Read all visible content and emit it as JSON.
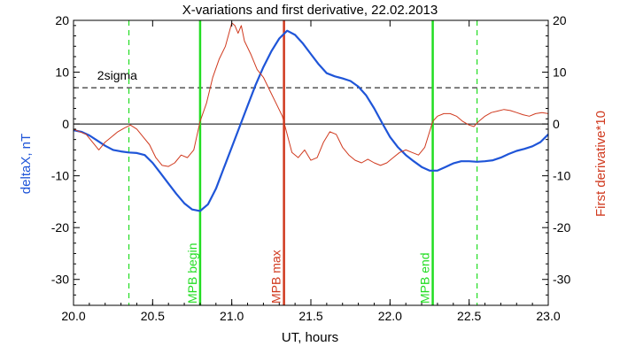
{
  "chart_data": {
    "type": "line",
    "title": "X-variations and first derivative, 22.02.2013",
    "xlabel": "UT, hours",
    "ylabel_left": "deltaX, nT",
    "ylabel_right": "First derivative*10",
    "xlim": [
      20.0,
      23.0
    ],
    "ylim": [
      -35,
      20
    ],
    "x_ticks": [
      "20.0",
      "20.5",
      "21.0",
      "21.5",
      "22.0",
      "22.5",
      "23.0"
    ],
    "y_ticks_left": [
      "20",
      "10",
      "0",
      "-10",
      "-20",
      "-30"
    ],
    "y_ticks_right": [
      "20",
      "10",
      "0",
      "-10",
      "-20",
      "-30"
    ],
    "colors": {
      "deltaX": "#1f55d8",
      "derivative": "#d03a1f",
      "mpb_solid": "#22dd22",
      "mpb_dashed": "#22dd22",
      "mpb_max": "#d03a1f",
      "zero_line": "#000000",
      "sigma_line": "#000000"
    },
    "sigma": {
      "label": "2sigma",
      "y": 7.0
    },
    "zero_line": {
      "y": 0
    },
    "vertical_lines": [
      {
        "x": 20.35,
        "style": "dashed",
        "color": "#22dd22",
        "label": ""
      },
      {
        "x": 20.8,
        "style": "solid",
        "color": "#22dd22",
        "label": "MPB begin"
      },
      {
        "x": 21.33,
        "style": "solid",
        "color": "#d03a1f",
        "label": "MPB max"
      },
      {
        "x": 22.27,
        "style": "solid",
        "color": "#22dd22",
        "label": "MPB end"
      },
      {
        "x": 22.55,
        "style": "dashed",
        "color": "#22dd22",
        "label": ""
      }
    ],
    "series": [
      {
        "name": "deltaX, nT",
        "color": "#1f55d8",
        "points": [
          [
            20.0,
            -1.2
          ],
          [
            20.05,
            -1.5
          ],
          [
            20.1,
            -2.2
          ],
          [
            20.15,
            -3.2
          ],
          [
            20.2,
            -4.2
          ],
          [
            20.25,
            -5.0
          ],
          [
            20.3,
            -5.3
          ],
          [
            20.35,
            -5.5
          ],
          [
            20.4,
            -5.6
          ],
          [
            20.45,
            -6.0
          ],
          [
            20.5,
            -7.5
          ],
          [
            20.55,
            -9.5
          ],
          [
            20.6,
            -11.5
          ],
          [
            20.65,
            -13.5
          ],
          [
            20.7,
            -15.3
          ],
          [
            20.75,
            -16.5
          ],
          [
            20.8,
            -16.8
          ],
          [
            20.85,
            -15.5
          ],
          [
            20.9,
            -12.5
          ],
          [
            20.95,
            -8.5
          ],
          [
            21.0,
            -4.5
          ],
          [
            21.05,
            -0.5
          ],
          [
            21.1,
            3.5
          ],
          [
            21.15,
            7.5
          ],
          [
            21.2,
            11.0
          ],
          [
            21.25,
            14.0
          ],
          [
            21.3,
            16.5
          ],
          [
            21.35,
            18.0
          ],
          [
            21.4,
            17.2
          ],
          [
            21.45,
            15.5
          ],
          [
            21.5,
            13.5
          ],
          [
            21.55,
            11.5
          ],
          [
            21.6,
            9.8
          ],
          [
            21.65,
            9.2
          ],
          [
            21.7,
            8.8
          ],
          [
            21.75,
            8.3
          ],
          [
            21.8,
            7.2
          ],
          [
            21.85,
            5.5
          ],
          [
            21.9,
            3.0
          ],
          [
            21.95,
            0.2
          ],
          [
            22.0,
            -2.5
          ],
          [
            22.05,
            -4.5
          ],
          [
            22.1,
            -6.0
          ],
          [
            22.15,
            -7.2
          ],
          [
            22.2,
            -8.3
          ],
          [
            22.25,
            -9.0
          ],
          [
            22.3,
            -9.0
          ],
          [
            22.35,
            -8.3
          ],
          [
            22.4,
            -7.6
          ],
          [
            22.45,
            -7.2
          ],
          [
            22.5,
            -7.2
          ],
          [
            22.55,
            -7.3
          ],
          [
            22.6,
            -7.2
          ],
          [
            22.65,
            -7.0
          ],
          [
            22.7,
            -6.5
          ],
          [
            22.75,
            -5.8
          ],
          [
            22.8,
            -5.2
          ],
          [
            22.85,
            -4.8
          ],
          [
            22.9,
            -4.3
          ],
          [
            22.95,
            -3.5
          ],
          [
            23.0,
            -2.0
          ]
        ]
      },
      {
        "name": "First derivative*10",
        "color": "#d03a1f",
        "points": [
          [
            20.0,
            -1.0
          ],
          [
            20.04,
            -1.5
          ],
          [
            20.08,
            -2.0
          ],
          [
            20.12,
            -3.5
          ],
          [
            20.16,
            -5.0
          ],
          [
            20.2,
            -3.5
          ],
          [
            20.24,
            -2.5
          ],
          [
            20.28,
            -1.5
          ],
          [
            20.32,
            -0.8
          ],
          [
            20.36,
            -0.2
          ],
          [
            20.4,
            -1.0
          ],
          [
            20.44,
            -2.5
          ],
          [
            20.48,
            -4.0
          ],
          [
            20.52,
            -6.5
          ],
          [
            20.56,
            -8.0
          ],
          [
            20.6,
            -8.2
          ],
          [
            20.64,
            -7.5
          ],
          [
            20.68,
            -6.0
          ],
          [
            20.72,
            -6.5
          ],
          [
            20.76,
            -5.0
          ],
          [
            20.8,
            0.5
          ],
          [
            20.84,
            4.0
          ],
          [
            20.88,
            9.0
          ],
          [
            20.92,
            12.5
          ],
          [
            20.96,
            15.0
          ],
          [
            21.0,
            19.5
          ],
          [
            21.02,
            19.0
          ],
          [
            21.04,
            17.5
          ],
          [
            21.06,
            19.0
          ],
          [
            21.08,
            16.0
          ],
          [
            21.12,
            13.5
          ],
          [
            21.16,
            10.5
          ],
          [
            21.2,
            9.0
          ],
          [
            21.24,
            6.5
          ],
          [
            21.28,
            4.0
          ],
          [
            21.32,
            1.5
          ],
          [
            21.35,
            -2.0
          ],
          [
            21.38,
            -5.5
          ],
          [
            21.42,
            -6.5
          ],
          [
            21.46,
            -5.0
          ],
          [
            21.5,
            -7.0
          ],
          [
            21.54,
            -6.5
          ],
          [
            21.58,
            -3.5
          ],
          [
            21.62,
            -1.5
          ],
          [
            21.66,
            -2.0
          ],
          [
            21.7,
            -4.5
          ],
          [
            21.74,
            -6.0
          ],
          [
            21.78,
            -7.0
          ],
          [
            21.82,
            -7.5
          ],
          [
            21.86,
            -6.8
          ],
          [
            21.9,
            -7.5
          ],
          [
            21.94,
            -8.0
          ],
          [
            21.98,
            -7.5
          ],
          [
            22.02,
            -6.5
          ],
          [
            22.06,
            -5.5
          ],
          [
            22.1,
            -5.0
          ],
          [
            22.14,
            -5.5
          ],
          [
            22.18,
            -6.0
          ],
          [
            22.22,
            -4.5
          ],
          [
            22.27,
            0.5
          ],
          [
            22.3,
            1.5
          ],
          [
            22.34,
            2.0
          ],
          [
            22.38,
            2.0
          ],
          [
            22.42,
            1.5
          ],
          [
            22.46,
            0.5
          ],
          [
            22.5,
            -0.2
          ],
          [
            22.53,
            -0.5
          ],
          [
            22.56,
            0.5
          ],
          [
            22.6,
            1.5
          ],
          [
            22.64,
            2.2
          ],
          [
            22.68,
            2.5
          ],
          [
            22.72,
            2.8
          ],
          [
            22.76,
            2.6
          ],
          [
            22.8,
            2.2
          ],
          [
            22.84,
            1.8
          ],
          [
            22.88,
            1.5
          ],
          [
            22.92,
            2.0
          ],
          [
            22.96,
            2.2
          ],
          [
            23.0,
            2.0
          ]
        ]
      }
    ]
  }
}
